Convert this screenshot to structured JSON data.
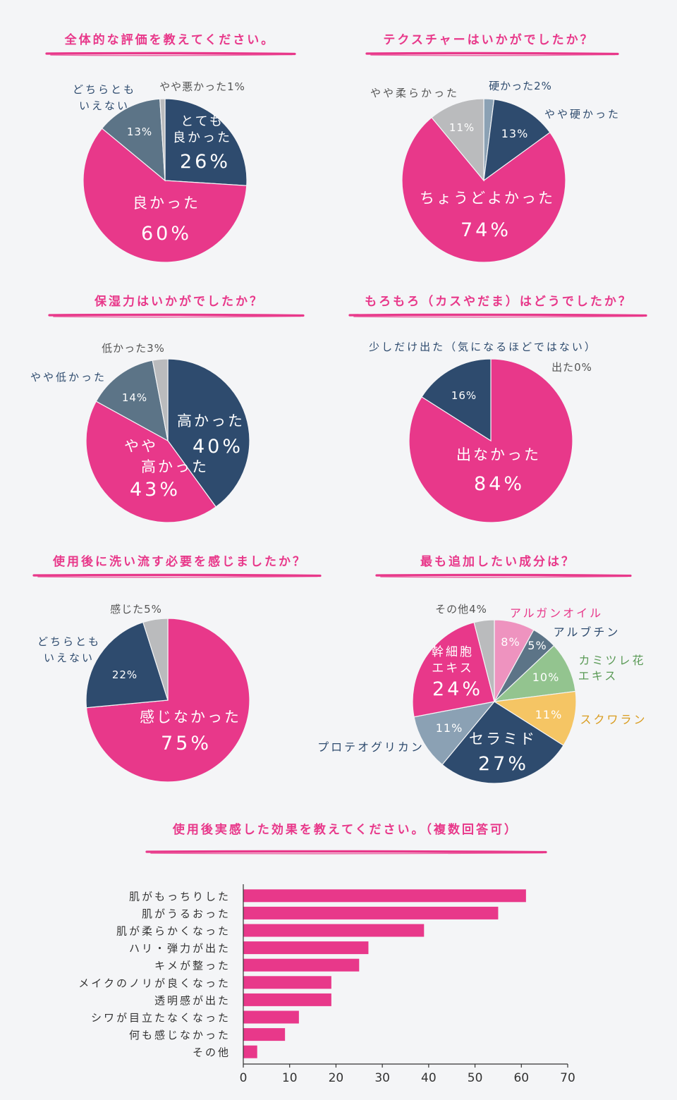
{
  "colors": {
    "pink": "#e8388a",
    "navy": "#2e4b6e",
    "slate": "#5c7487",
    "gray": "#babbbd",
    "light_pink": "#ee93bf",
    "light_blue": "#8ba1b4",
    "green": "#93c48f",
    "yellow": "#f5c564",
    "green_text": "#5a9a56",
    "yellow_text": "#d99c1f",
    "label_dark": "#2e4b6e",
    "label_gray": "#555555",
    "bg": "#f4f5f7"
  },
  "chart_data": [
    {
      "type": "pie",
      "title": "全体的な評価を教えてください。",
      "slices": [
        {
          "label": "とても良かった",
          "value": 26,
          "value_text": "26%",
          "color": "navy",
          "label_lines": [
            "とても",
            "良かった"
          ],
          "label_color": "#ffffff",
          "value_color": "#ffffff"
        },
        {
          "label": "良かった",
          "value": 60,
          "value_text": "60%",
          "color": "pink",
          "label_lines": [
            "良かった"
          ],
          "label_color": "#ffffff",
          "value_color": "#ffffff"
        },
        {
          "label": "どちらともいえない",
          "value": 13,
          "value_text": "13%",
          "color": "slate",
          "label_lines": [
            "どちらとも",
            "いえない"
          ],
          "label_color": "#2e4b6e",
          "value_color": "#ffffff"
        },
        {
          "label": "やや悪かった",
          "value": 1,
          "value_text": "やや悪かった1%",
          "color": "gray",
          "label_lines": [],
          "label_color": "#555555",
          "value_color": "#555555"
        }
      ]
    },
    {
      "type": "pie",
      "title": "テクスチャーはいかがでしたか？",
      "slices": [
        {
          "label": "硬かった",
          "value": 2,
          "value_text": "硬かった2%",
          "color": "light_blue",
          "label_lines": [],
          "label_color": "#2e4b6e",
          "value_color": "#2e4b6e"
        },
        {
          "label": "やや硬かった",
          "value": 13,
          "value_text": "13%",
          "color": "navy",
          "label_lines": [
            "やや硬かった"
          ],
          "label_color": "#2e4b6e",
          "value_color": "#ffffff"
        },
        {
          "label": "ちょうどよかった",
          "value": 74,
          "value_text": "74%",
          "color": "pink",
          "label_lines": [
            "ちょうどよかった"
          ],
          "label_color": "#ffffff",
          "value_color": "#ffffff"
        },
        {
          "label": "やや柔らかった",
          "value": 11,
          "value_text": "11%",
          "color": "gray",
          "label_lines": [
            "やや柔らかった"
          ],
          "label_color": "#555555",
          "value_color": "#ffffff"
        }
      ]
    },
    {
      "type": "pie",
      "title": "保湿力はいかがでしたか？",
      "slices": [
        {
          "label": "高かった",
          "value": 40,
          "value_text": "40%",
          "color": "navy",
          "label_lines": [
            "高かった"
          ],
          "label_color": "#ffffff",
          "value_color": "#ffffff"
        },
        {
          "label": "やや高かった",
          "value": 43,
          "value_text": "43%",
          "color": "pink",
          "label_lines": [
            "やや",
            "高かった"
          ],
          "label_color": "#ffffff",
          "value_color": "#ffffff"
        },
        {
          "label": "やや低かった",
          "value": 14,
          "value_text": "14%",
          "color": "slate",
          "label_lines": [
            "やや低かった"
          ],
          "label_color": "#2e4b6e",
          "value_color": "#ffffff"
        },
        {
          "label": "低かった",
          "value": 3,
          "value_text": "低かった3%",
          "color": "gray",
          "label_lines": [],
          "label_color": "#555555",
          "value_color": "#555555"
        }
      ]
    },
    {
      "type": "pie",
      "title": "もろもろ（カスやだま）はどうでしたか？",
      "slices": [
        {
          "label": "出た",
          "value": 0,
          "value_text": "出た0%",
          "color": "gray",
          "label_lines": [],
          "label_color": "#555555",
          "value_color": "#555555"
        },
        {
          "label": "出なかった",
          "value": 84,
          "value_text": "84%",
          "color": "pink",
          "label_lines": [
            "出なかった"
          ],
          "label_color": "#ffffff",
          "value_color": "#ffffff"
        },
        {
          "label": "少しだけ出た（気になるほどではない）",
          "value": 16,
          "value_text": "16%",
          "color": "navy",
          "label_lines": [
            "少しだけ出た（気になるほどではない）"
          ],
          "label_color": "#2e4b6e",
          "value_color": "#ffffff"
        }
      ]
    },
    {
      "type": "pie",
      "title": "使用後に洗い流す必要を感じましたか？",
      "slices": [
        {
          "label": "感じなかった",
          "value": 75,
          "value_text": "75%",
          "color": "pink",
          "label_lines": [
            "感じなかった"
          ],
          "label_color": "#ffffff",
          "value_color": "#ffffff"
        },
        {
          "label": "どちらともいえない",
          "value": 22,
          "value_text": "22%",
          "color": "navy",
          "label_lines": [
            "どちらとも",
            "いえない"
          ],
          "label_color": "#2e4b6e",
          "value_color": "#ffffff"
        },
        {
          "label": "感じた",
          "value": 5,
          "value_text": "感じた5%",
          "color": "gray",
          "label_lines": [],
          "label_color": "#555555",
          "value_color": "#555555"
        }
      ]
    },
    {
      "type": "pie",
      "title": "最も追加したい成分は？",
      "slices": [
        {
          "label": "アルガンオイル",
          "value": 8,
          "value_text": "8%",
          "color": "light_pink",
          "label_lines": [
            "アルガンオイル"
          ],
          "label_color": "#e8388a",
          "value_color": "#ffffff"
        },
        {
          "label": "アルブチン",
          "value": 5,
          "value_text": "5%",
          "color": "slate",
          "label_lines": [
            "アルブチン"
          ],
          "label_color": "#2e4b6e",
          "value_color": "#ffffff"
        },
        {
          "label": "カミツレ花エキス",
          "value": 10,
          "value_text": "10%",
          "color": "green",
          "label_lines": [
            "カミツレ花",
            "エキス"
          ],
          "label_color": "#5a9a56",
          "value_color": "#ffffff"
        },
        {
          "label": "スクワラン",
          "value": 11,
          "value_text": "11%",
          "color": "yellow",
          "label_lines": [
            "スクワラン"
          ],
          "label_color": "#d99c1f",
          "value_color": "#ffffff"
        },
        {
          "label": "セラミド",
          "value": 27,
          "value_text": "27%",
          "color": "navy",
          "label_lines": [
            "セラミド"
          ],
          "label_color": "#ffffff",
          "value_color": "#ffffff"
        },
        {
          "label": "プロテオグリカン",
          "value": 11,
          "value_text": "11%",
          "color": "light_blue",
          "label_lines": [
            "プロテオグリカン"
          ],
          "label_color": "#2e4b6e",
          "value_color": "#ffffff"
        },
        {
          "label": "幹細胞エキス",
          "value": 24,
          "value_text": "24%",
          "color": "pink",
          "label_lines": [
            "幹細胞",
            "エキス"
          ],
          "label_color": "#ffffff",
          "value_color": "#ffffff"
        },
        {
          "label": "その他",
          "value": 4,
          "value_text": "その他4%",
          "color": "gray",
          "label_lines": [],
          "label_color": "#555555",
          "value_color": "#555555"
        }
      ]
    },
    {
      "type": "bar",
      "orientation": "horizontal",
      "title": "使用後実感した効果を教えてください。（複数回答可）",
      "categories": [
        "肌がもっちりした",
        "肌がうるおった",
        "肌が柔らかくなった",
        "ハリ・弾力が出た",
        "キメが整った",
        "メイクのノリが良くなった",
        "透明感が出た",
        "シワが目立たなくなった",
        "何も感じなかった",
        "その他"
      ],
      "values": [
        61,
        55,
        39,
        27,
        25,
        19,
        19,
        12,
        9,
        3
      ],
      "xlim": [
        0,
        70
      ],
      "xticks": [
        0,
        10,
        20,
        30,
        40,
        50,
        60,
        70
      ],
      "color": "pink",
      "grid": false
    }
  ]
}
